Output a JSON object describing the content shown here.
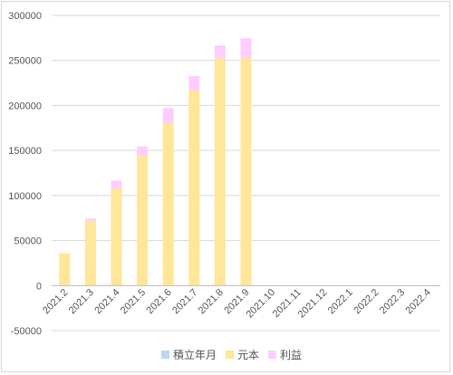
{
  "chart_data": {
    "type": "bar",
    "stacked": true,
    "categories": [
      "2021.2",
      "2021.3",
      "2021.4",
      "2021.5",
      "2021.6",
      "2021.7",
      "2021.8",
      "2021.9",
      "2021.10",
      "2021.11",
      "2021.12",
      "2022.1",
      "2022.2",
      "2022.3",
      "2022.4"
    ],
    "series": [
      {
        "name": "積立年月",
        "values": [
          0,
          0,
          0,
          0,
          0,
          0,
          0,
          0,
          0,
          0,
          0,
          0,
          0,
          0,
          0
        ],
        "color": "#bdd7ee"
      },
      {
        "name": "元本",
        "values": [
          36000,
          72000,
          108000,
          145000,
          181000,
          217000,
          253000,
          253000,
          0,
          0,
          0,
          0,
          0,
          0,
          0
        ],
        "color": "#ffe699"
      },
      {
        "name": "利益",
        "values": [
          0,
          2500,
          8500,
          9500,
          16000,
          15500,
          13500,
          21500,
          0,
          0,
          0,
          0,
          0,
          0,
          0
        ],
        "color": "#ffccff"
      }
    ],
    "yticks": [
      300000,
      250000,
      200000,
      150000,
      100000,
      50000,
      0,
      -50000
    ],
    "ylim": [
      -50000,
      300000
    ],
    "grid": true,
    "legend_position": "bottom"
  }
}
